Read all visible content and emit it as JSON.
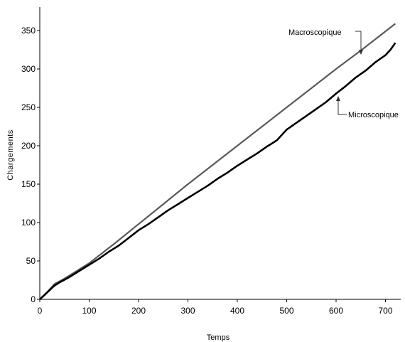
{
  "chart_data": {
    "type": "line",
    "title": "",
    "xlabel": "Temps",
    "ylabel": "Chargements",
    "xlim": [
      0,
      720
    ],
    "ylim": [
      0,
      370
    ],
    "xticks": [
      0,
      100,
      200,
      300,
      400,
      500,
      600,
      700
    ],
    "yticks": [
      0,
      50,
      100,
      150,
      200,
      250,
      300,
      350
    ],
    "grid": false,
    "legend": "none",
    "series": [
      {
        "name": "Macroscopique",
        "color": "#595959",
        "x": [
          0,
          10,
          20,
          30,
          50,
          100,
          150,
          200,
          250,
          300,
          350,
          400,
          450,
          500,
          550,
          600,
          650,
          700,
          720
        ],
        "y": [
          0,
          6,
          13,
          20,
          27,
          47,
          72,
          98,
          124,
          150,
          175,
          200,
          225,
          250,
          275,
          300,
          324,
          349,
          359
        ]
      },
      {
        "name": "Microscopique",
        "color": "#000000",
        "x": [
          0,
          10,
          20,
          30,
          40,
          60,
          80,
          100,
          120,
          140,
          160,
          180,
          200,
          220,
          240,
          260,
          280,
          300,
          320,
          340,
          360,
          380,
          400,
          420,
          440,
          460,
          480,
          500,
          520,
          540,
          560,
          580,
          600,
          620,
          640,
          660,
          680,
          700,
          710,
          720
        ],
        "y": [
          0,
          6,
          12,
          18,
          22,
          29,
          37,
          45,
          53,
          62,
          70,
          80,
          90,
          98,
          107,
          116,
          124,
          132,
          140,
          148,
          157,
          165,
          174,
          182,
          190,
          199,
          207,
          221,
          230,
          239,
          248,
          257,
          268,
          278,
          289,
          298,
          309,
          318,
          325,
          334
        ]
      }
    ],
    "annotations": [
      {
        "text": "Macroscopique",
        "series": 0
      },
      {
        "text": "Microscopique",
        "series": 1
      }
    ]
  }
}
